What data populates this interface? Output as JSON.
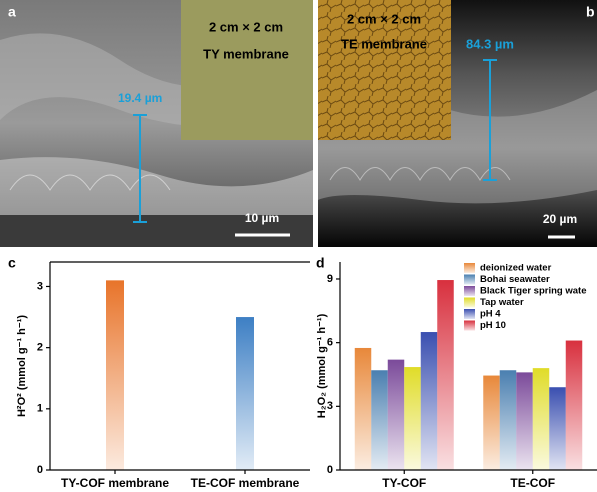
{
  "images": [
    {
      "label": "a",
      "inset_size": "2 cm × 2 cm",
      "inset_name": "TY membrane",
      "thickness": "19.4 µm",
      "scale_bar": "10 µm"
    },
    {
      "label": "b",
      "inset_size": "2 cm × 2 cm",
      "inset_name": "TE membrane",
      "thickness": "84.3 µm",
      "scale_bar": "20 µm"
    }
  ],
  "chart_data": [
    {
      "type": "bar",
      "label": "c",
      "y_label": "H²O² (mmol g⁻¹ h⁻¹)",
      "categories": [
        "TY-COF membrane",
        "TE-COF membrane"
      ],
      "values": [
        3.1,
        2.5
      ],
      "colors": [
        "#e8742a",
        "#3d7fc4"
      ],
      "ylim": [
        0,
        3.4
      ],
      "yticks": [
        0,
        1,
        2,
        3
      ]
    },
    {
      "type": "grouped-bar",
      "label": "d",
      "y_label": "H₂O₂ (mmol g⁻¹ h⁻¹)",
      "categories": [
        "TY-COF",
        "TE-COF"
      ],
      "series": [
        {
          "name": "deionized water",
          "color": "#e8883a",
          "values": [
            5.75,
            4.45
          ]
        },
        {
          "name": "Bohai seawater",
          "color": "#4a7fb0",
          "values": [
            4.7,
            4.7
          ]
        },
        {
          "name": "Black Tiger spring wate",
          "color": "#7b4a9a",
          "values": [
            5.2,
            4.6
          ]
        },
        {
          "name": "Tap water",
          "color": "#e0dc28",
          "values": [
            4.85,
            4.8
          ]
        },
        {
          "name": "pH 4",
          "color": "#3a4fb0",
          "values": [
            6.5,
            3.9
          ]
        },
        {
          "name": "pH 10",
          "color": "#d8303e",
          "values": [
            8.95,
            6.1
          ]
        }
      ],
      "ylim": [
        0,
        9.8
      ],
      "yticks": [
        0,
        3,
        6,
        9
      ]
    }
  ]
}
